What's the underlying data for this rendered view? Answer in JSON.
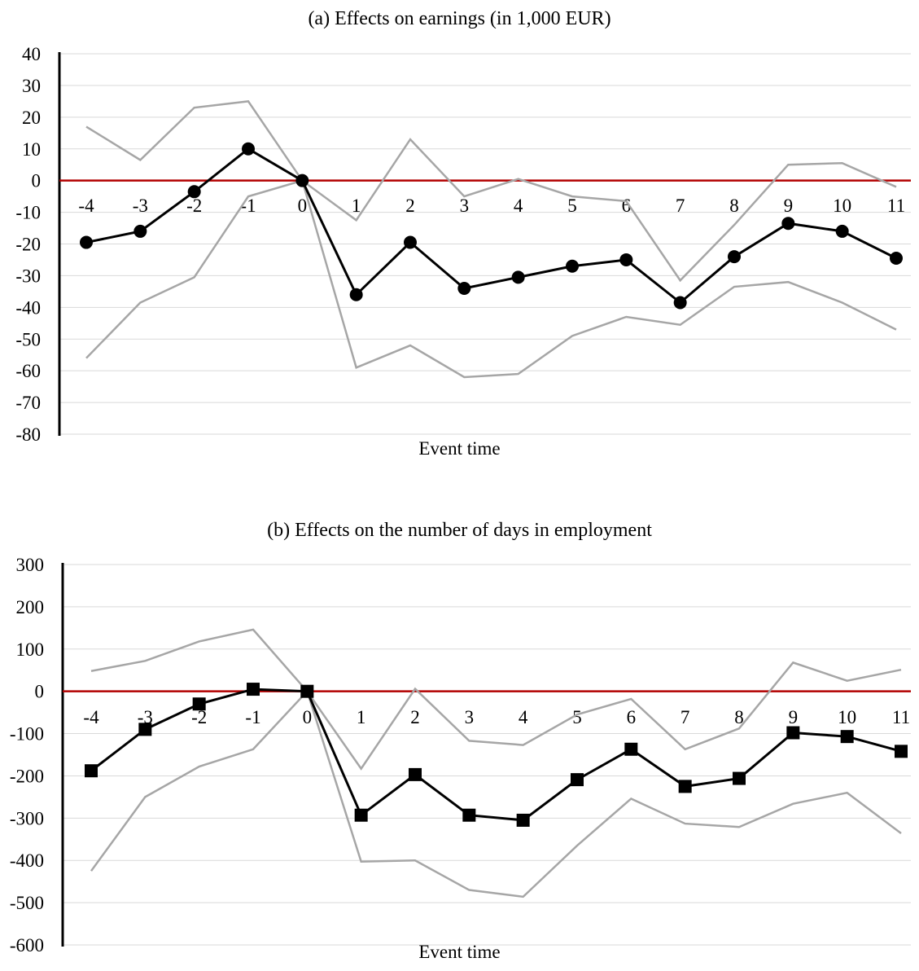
{
  "chart_data": [
    {
      "type": "line",
      "title": "(a) Effects on earnings (in 1,000 EUR)",
      "xlabel": "Event time",
      "ylabel": "",
      "ylim": [
        -80,
        40
      ],
      "yticks": [
        40,
        30,
        20,
        10,
        0,
        -10,
        -20,
        -30,
        -40,
        -50,
        -60,
        -70,
        -80
      ],
      "x": [
        "-4",
        "-3",
        "-2",
        "-1",
        "0",
        "1",
        "2",
        "3",
        "4",
        "5",
        "6",
        "7",
        "8",
        "9",
        "10",
        "11"
      ],
      "grid": true,
      "reference_line": {
        "y": 0,
        "color": "#b20000"
      },
      "marker": "circle",
      "series": [
        {
          "role": "estimate",
          "color": "#000000",
          "values": [
            -19.5,
            -16,
            -3.5,
            10,
            0,
            -36,
            -19.5,
            -34,
            -30.5,
            -27,
            -25,
            -38.5,
            -24,
            -13.5,
            -16,
            -24.5
          ]
        },
        {
          "role": "upper",
          "color": "#a6a6a6",
          "values": [
            17,
            6.5,
            23,
            25,
            0,
            -12.5,
            13,
            -5,
            0.5,
            -5,
            -6.5,
            -31.5,
            -14,
            5,
            5.5,
            -2
          ]
        },
        {
          "role": "lower",
          "color": "#a6a6a6",
          "values": [
            -56,
            -38.5,
            -30.5,
            -5,
            0,
            -59,
            -52,
            -62,
            -61,
            -49,
            -43,
            -45.5,
            -33.5,
            -32,
            -38.5,
            -47
          ]
        }
      ]
    },
    {
      "type": "line",
      "title": "(b) Effects on the number of days in employment",
      "xlabel": "Event time",
      "ylabel": "",
      "ylim": [
        -600,
        300
      ],
      "yticks": [
        300,
        200,
        100,
        0,
        -100,
        -200,
        -300,
        -400,
        -500,
        -600
      ],
      "x": [
        "-4",
        "-3",
        "-2",
        "-1",
        "0",
        "1",
        "2",
        "3",
        "4",
        "5",
        "6",
        "7",
        "8",
        "9",
        "10",
        "11"
      ],
      "grid": true,
      "reference_line": {
        "y": 0,
        "color": "#b20000"
      },
      "marker": "square",
      "series": [
        {
          "role": "estimate",
          "color": "#000000",
          "values": [
            -188,
            -90,
            -30,
            5,
            0,
            -293,
            -197,
            -293,
            -305,
            -209,
            -137,
            -225,
            -206,
            -98,
            -107,
            -142
          ]
        },
        {
          "role": "upper",
          "color": "#a6a6a6",
          "values": [
            48,
            72,
            118,
            146,
            0,
            -183,
            6,
            -117,
            -127,
            -55,
            -18,
            -137,
            -88,
            68,
            25,
            51
          ]
        },
        {
          "role": "lower",
          "color": "#a6a6a6",
          "values": [
            -425,
            -250,
            -178,
            -137,
            0,
            -403,
            -400,
            -470,
            -486,
            -365,
            -254,
            -313,
            -321,
            -266,
            -240,
            -336
          ]
        }
      ]
    }
  ]
}
